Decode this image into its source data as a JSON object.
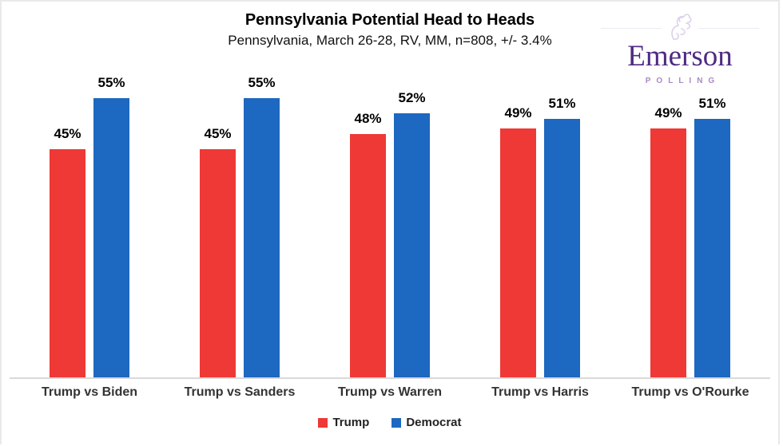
{
  "frame": {
    "border_color": "#e9e9e9",
    "background": "#ffffff"
  },
  "header": {
    "title": "Pennsylvania Potential Head to Heads",
    "subtitle": "Pennsylvania, March 26-28, RV, MM, n=808, +/- 3.4%"
  },
  "logo": {
    "name": "Emerson",
    "tagline": "POLLING",
    "name_color": "#4e2a84",
    "tagline_color": "#a78bc4",
    "crest_color": "#dcd0ec",
    "line_color": "#efe9f7"
  },
  "chart_data": {
    "type": "bar",
    "title": "Pennsylvania Potential Head to Heads",
    "subtitle": "Pennsylvania, March 26-28, RV, MM, n=808, +/- 3.4%",
    "categories": [
      "Trump vs Biden",
      "Trump vs Sanders",
      "Trump vs Warren",
      "Trump vs Harris",
      "Trump vs O'Rourke"
    ],
    "series": [
      {
        "name": "Trump",
        "color": "#ee3936",
        "values": [
          45,
          45,
          48,
          49,
          49
        ],
        "labels": [
          "45%",
          "45%",
          "48%",
          "49%",
          "49%"
        ]
      },
      {
        "name": "Democrat",
        "color": "#1d68c0",
        "values": [
          55,
          55,
          52,
          51,
          51
        ],
        "labels": [
          "55%",
          "55%",
          "52%",
          "51%",
          "51%"
        ]
      }
    ],
    "value_suffix": "%",
    "ylim": [
      0,
      60
    ],
    "gridlines": false,
    "data_labels": true,
    "legend_position": "bottom",
    "axis_line_color": "#d9d9d9",
    "xlabel": "",
    "ylabel": ""
  },
  "legend": {
    "items": [
      {
        "label": "Trump",
        "color": "#ee3936"
      },
      {
        "label": "Democrat",
        "color": "#1d68c0"
      }
    ]
  }
}
